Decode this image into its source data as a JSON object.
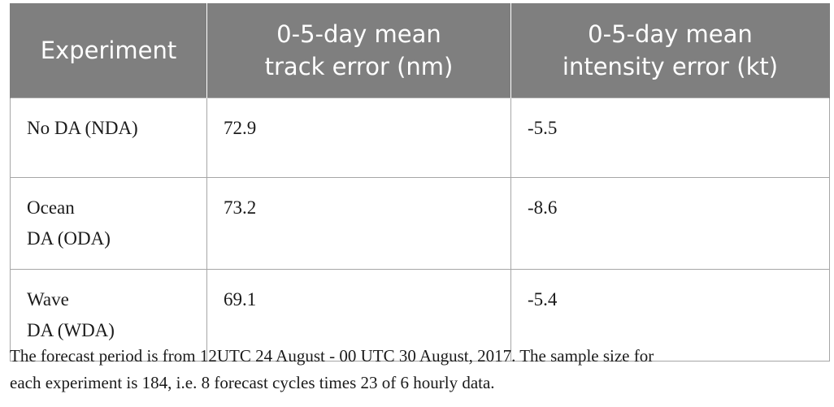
{
  "table": {
    "headers": [
      [
        "Experiment"
      ],
      [
        "0-5-day mean",
        "track error (nm)"
      ],
      [
        "0-5-day mean",
        "intensity error (kt)"
      ]
    ],
    "rows": [
      {
        "experiment": [
          "No DA (NDA)"
        ],
        "track_error": "72.9",
        "intensity_error": "-5.5"
      },
      {
        "experiment": [
          "Ocean",
          "DA (ODA)"
        ],
        "track_error": "73.2",
        "intensity_error": "-8.6"
      },
      {
        "experiment": [
          "Wave",
          "DA (WDA)"
        ],
        "track_error": "69.1",
        "intensity_error": "-5.4"
      }
    ]
  },
  "footnote": {
    "lines": [
      "The forecast period is from 12UTC 24 August - 00 UTC 30 August, 2017. The sample size for",
      "each experiment is 184, i.e. 8 forecast cycles times 23 of 6 hourly data."
    ]
  },
  "colors": {
    "header_background": "#7f7f7f",
    "header_text": "#ffffff",
    "grid_lines": "#a6a6a6",
    "body_text": "#1a1a1a"
  }
}
